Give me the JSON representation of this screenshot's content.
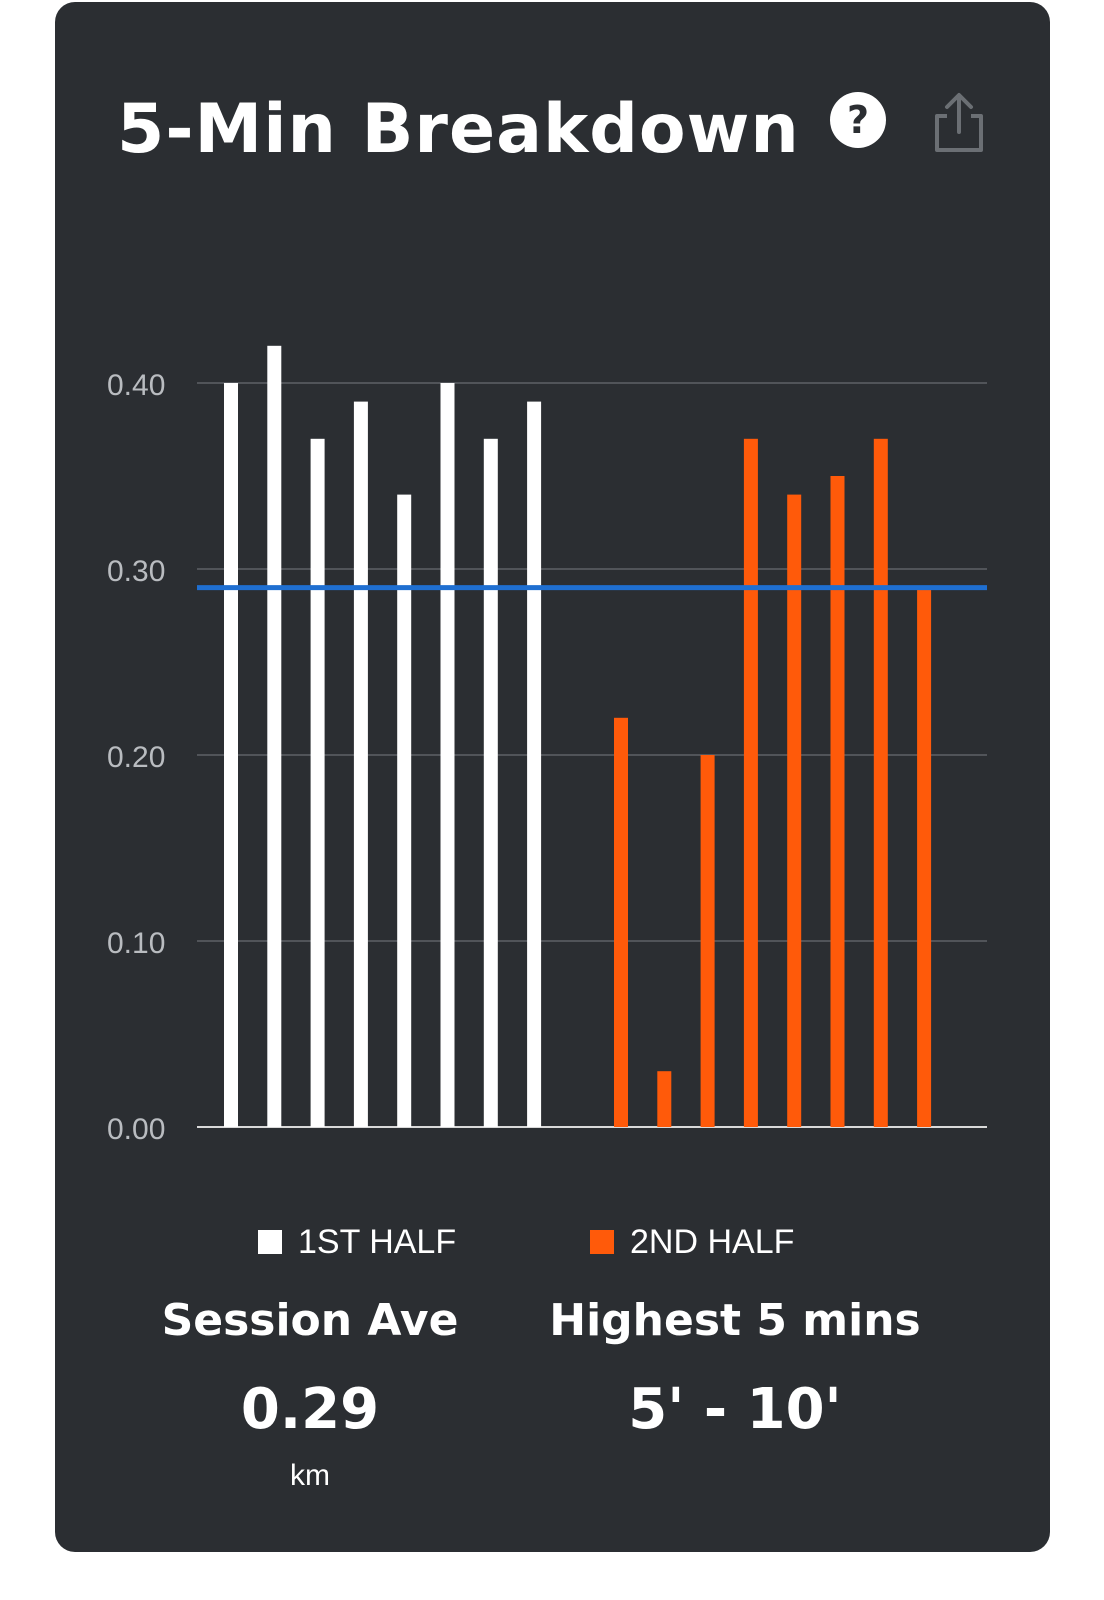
{
  "card": {
    "title": "5-Min Breakdown",
    "icons": {
      "help": "help-icon",
      "share": "share-icon"
    }
  },
  "chart_data": {
    "type": "bar",
    "title": "",
    "xlabel": "",
    "ylabel": "",
    "ylim": [
      0,
      0.42
    ],
    "yticks": [
      "0.00",
      "0.10",
      "0.20",
      "0.30",
      "0.40"
    ],
    "grid": true,
    "legend_position": "bottom",
    "series": [
      {
        "name": "1ST HALF",
        "color": "#ffffff",
        "values": [
          0.4,
          0.42,
          0.37,
          0.39,
          0.34,
          0.4,
          0.37,
          0.39
        ]
      },
      {
        "name": "2ND HALF",
        "color": "#ff5a0a",
        "values": [
          0.22,
          0.03,
          0.2,
          0.37,
          0.34,
          0.35,
          0.37,
          0.29
        ]
      }
    ],
    "reference_line": {
      "value": 0.29,
      "color": "#1f6fd1"
    }
  },
  "stats": {
    "session_ave": {
      "label": "Session Ave",
      "value": "0.29",
      "unit": "km"
    },
    "highest": {
      "label": "Highest 5 mins",
      "value": "5' - 10'"
    }
  }
}
